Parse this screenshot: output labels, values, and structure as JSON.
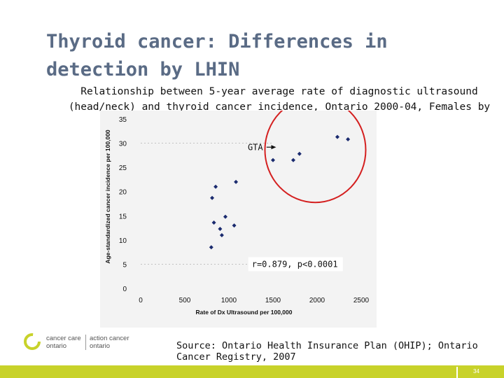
{
  "slide": {
    "title_lines": [
      "Thyroid cancer: Differences in",
      "detection by LHIN"
    ],
    "subtitle_lines": [
      "Relationship between 5-year average rate of diagnostic ultrasound",
      "(head/neck) and thyroid cancer incidence, Ontario 2000-04, Females by"
    ],
    "source_lines": [
      "Source: Ontario Health Insurance Plan (OHIP); Ontario",
      "Cancer Registry, 2007"
    ],
    "page_number": "34",
    "logo": {
      "left_line1": "cancer care",
      "left_line2": "ontario",
      "right_line1": "action cancer",
      "right_line2": "ontario"
    }
  },
  "chart_data": {
    "type": "scatter",
    "title": "",
    "xlabel": "Rate of Dx Ultrasound per 100,000",
    "ylabel": "Age-standardized cancer incidence per 100,000",
    "xlim": [
      0,
      2500
    ],
    "ylim": [
      0,
      35
    ],
    "x_ticks": [
      0,
      500,
      1000,
      1500,
      2000,
      2500
    ],
    "y_ticks": [
      0,
      5,
      10,
      15,
      20,
      25,
      30,
      35
    ],
    "grid": false,
    "legend": "none",
    "points": [
      {
        "x": 800,
        "y": 8.5
      },
      {
        "x": 810,
        "y": 18.7
      },
      {
        "x": 830,
        "y": 13.6
      },
      {
        "x": 850,
        "y": 21.0
      },
      {
        "x": 900,
        "y": 12.3
      },
      {
        "x": 920,
        "y": 11.0
      },
      {
        "x": 960,
        "y": 14.8
      },
      {
        "x": 1060,
        "y": 13.0
      },
      {
        "x": 1080,
        "y": 22.0
      },
      {
        "x": 1500,
        "y": 26.5
      },
      {
        "x": 1730,
        "y": 26.5
      },
      {
        "x": 1800,
        "y": 27.8
      },
      {
        "x": 2230,
        "y": 31.3
      },
      {
        "x": 2350,
        "y": 30.8
      }
    ],
    "annotations": {
      "gta_label": "GTA",
      "correlation": "r=0.879, p<0.0001"
    },
    "colors": {
      "marker": "#1a2a6e",
      "circle": "#d42020",
      "background": "#f3f3f3"
    }
  }
}
